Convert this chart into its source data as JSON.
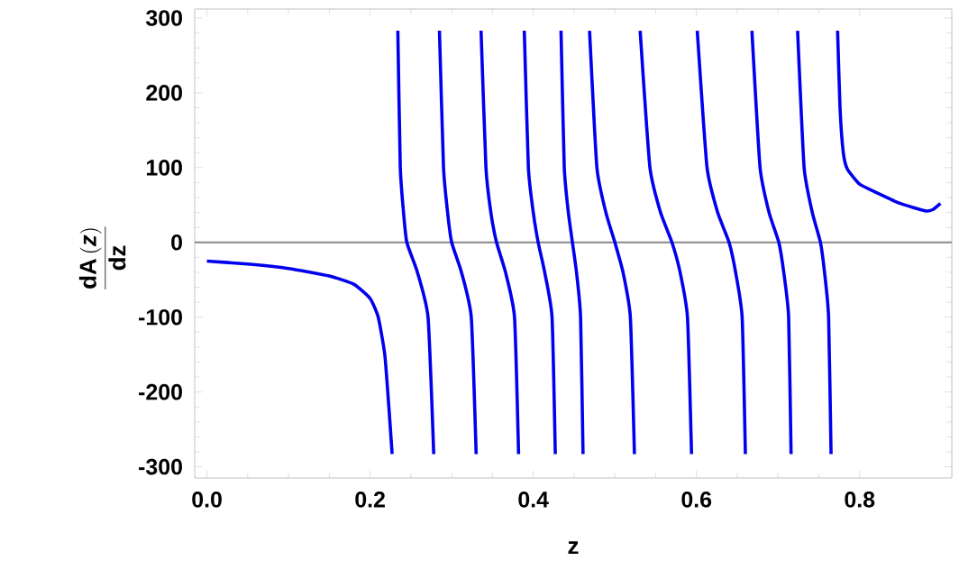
{
  "chart_data": {
    "type": "line",
    "xlabel": "z",
    "ylabel": "\\frac{\\textbf{dA}\\,(\\textbf{\\textit{z}})}{\\textbf{dz}}",
    "xlim": [
      -0.015,
      0.913
    ],
    "ylim": [
      -315,
      312
    ],
    "xticks": [
      {
        "value": 0,
        "label": "0.0"
      },
      0.2,
      0.4,
      0.6,
      0.8
    ],
    "yticks": [
      -300,
      -200,
      -100,
      0,
      100,
      200,
      300
    ],
    "grid": false,
    "marker": "none",
    "line_style": "solid",
    "ref_lines": [
      {
        "axis": "y",
        "value": 0,
        "color": "#888888"
      }
    ],
    "series": [
      {
        "color": "#0000ee",
        "x": [
          0,
          0.05,
          0.1,
          0.15,
          0.18,
          0.2,
          0.21,
          0.218,
          0.223,
          0.227
        ],
        "values": [
          -25,
          -29,
          -35,
          -45,
          -56,
          -75,
          -100,
          -150,
          -220,
          -283
        ]
      },
      {
        "color": "#0000ee",
        "x": [
          0.234,
          0.237,
          0.241,
          0.245,
          0.258,
          0.271,
          0.278
        ],
        "values": [
          283,
          100,
          40,
          0,
          -40,
          -100,
          -283
        ]
      },
      {
        "color": "#0000ee",
        "x": [
          0.285,
          0.29,
          0.295,
          0.3,
          0.312,
          0.324,
          0.33
        ],
        "values": [
          283,
          100,
          40,
          0,
          -40,
          -100,
          -283
        ]
      },
      {
        "color": "#0000ee",
        "x": [
          0.336,
          0.342,
          0.348,
          0.355,
          0.366,
          0.377,
          0.382
        ],
        "values": [
          283,
          100,
          40,
          0,
          -40,
          -100,
          -283
        ]
      },
      {
        "color": "#0000ee",
        "x": [
          0.389,
          0.394,
          0.4,
          0.406,
          0.414,
          0.423,
          0.427
        ],
        "values": [
          283,
          100,
          40,
          0,
          -40,
          -100,
          -283
        ]
      },
      {
        "color": "#0000ee",
        "x": [
          0.434,
          0.438,
          0.443,
          0.448,
          0.453,
          0.458,
          0.461
        ],
        "values": [
          283,
          100,
          40,
          0,
          -40,
          -100,
          -283
        ]
      },
      {
        "color": "#0000ee",
        "x": [
          0.469,
          0.478,
          0.489,
          0.5,
          0.51,
          0.519,
          0.524
        ],
        "values": [
          283,
          100,
          40,
          0,
          -40,
          -100,
          -283
        ]
      },
      {
        "color": "#0000ee",
        "x": [
          0.531,
          0.543,
          0.556,
          0.57,
          0.58,
          0.589,
          0.594
        ],
        "values": [
          283,
          100,
          40,
          0,
          -40,
          -100,
          -283
        ]
      },
      {
        "color": "#0000ee",
        "x": [
          0.601,
          0.613,
          0.626,
          0.64,
          0.648,
          0.656,
          0.66
        ],
        "values": [
          283,
          100,
          40,
          0,
          -40,
          -100,
          -283
        ]
      },
      {
        "color": "#0000ee",
        "x": [
          0.668,
          0.678,
          0.689,
          0.701,
          0.707,
          0.713,
          0.716
        ],
        "values": [
          283,
          100,
          40,
          0,
          -40,
          -100,
          -283
        ]
      },
      {
        "color": "#0000ee",
        "x": [
          0.724,
          0.732,
          0.742,
          0.752,
          0.757,
          0.762,
          0.765
        ],
        "values": [
          283,
          100,
          40,
          0,
          -40,
          -100,
          -283
        ]
      },
      {
        "color": "#0000ee",
        "x": [
          0.773,
          0.776,
          0.78,
          0.785,
          0.8,
          0.822,
          0.85,
          0.881,
          0.89,
          0.899
        ],
        "values": [
          283,
          180,
          120,
          98,
          78,
          66,
          52,
          42,
          44,
          52
        ]
      }
    ]
  }
}
